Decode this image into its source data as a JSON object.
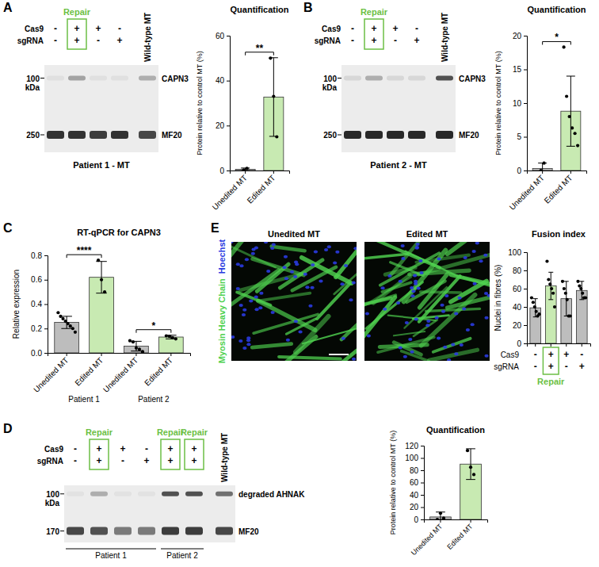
{
  "panel_labels": [
    "A",
    "B",
    "C",
    "D",
    "E"
  ],
  "blots": [
    {
      "rows": [
        {
          "label": "Cas9",
          "values": [
            "-",
            "+",
            "+",
            "-"
          ]
        },
        {
          "label": "sgRNA",
          "values": [
            "-",
            "+",
            "-",
            "+"
          ]
        }
      ],
      "extra_lane": "Wild-type MT",
      "repair_lanes": [
        1
      ],
      "repair_label": "Repair",
      "markers": [
        100,
        250
      ],
      "marker_unit": "kDa",
      "bands": [
        "CAPN3",
        "MF20"
      ],
      "caption": "Patient 1 - MT"
    },
    {
      "rows": [
        {
          "label": "Cas9",
          "values": [
            "-",
            "+",
            "+",
            "-"
          ]
        },
        {
          "label": "sgRNA",
          "values": [
            "-",
            "+",
            "-",
            "+"
          ]
        }
      ],
      "extra_lane": "Wild-type MT",
      "repair_lanes": [
        1
      ],
      "repair_label": "Repair",
      "markers": [
        100,
        250
      ],
      "marker_unit": "kDa",
      "bands": [
        "CAPN3",
        "MF20"
      ],
      "caption": "Patient 2 - MT"
    },
    {
      "rows": [
        {
          "label": "Cas9",
          "values": [
            "-",
            "+",
            "+",
            "-",
            "+",
            "+"
          ]
        },
        {
          "label": "sgRNA",
          "values": [
            "-",
            "+",
            "-",
            "+",
            "+",
            "+"
          ]
        }
      ],
      "extra_lane": "Wild-type MT",
      "repair_lanes": [
        1,
        4,
        5
      ],
      "repair_label": "Repair",
      "markers": [
        100,
        170
      ],
      "marker_unit": "kDa",
      "bands": [
        "degraded AHNAK",
        "MF20"
      ],
      "groups": [
        {
          "label": "Patient 1",
          "lanes": [
            0,
            3
          ]
        },
        {
          "label": "Patient 2",
          "lanes": [
            4,
            5
          ]
        }
      ]
    }
  ],
  "images": {
    "titles": [
      "Unedited MT",
      "Edited MT"
    ],
    "stains": [
      {
        "text": "Myosin Heavy Chain",
        "color": "#4fd14f"
      },
      {
        "text": "Hoechst",
        "color": "#2a3be0"
      }
    ]
  },
  "chart_data": [
    {
      "type": "bar",
      "title": "Quantification",
      "ylabel": "Protein relative to control MT (%)",
      "categories": [
        "Unedited MT",
        "Edited MT"
      ],
      "values": [
        0.5,
        32.7
      ],
      "errors": [
        0.6,
        17.5
      ],
      "points": [
        [
          0.2,
          0.9
        ],
        [
          50,
          33,
          15
        ]
      ],
      "colors": [
        "#bdbdbd",
        "#c8eab2"
      ],
      "ylim": [
        0,
        60
      ],
      "yticks": [
        0,
        20,
        40,
        60
      ],
      "annotations": [
        {
          "text": "**",
          "between": [
            0,
            1
          ]
        }
      ]
    },
    {
      "type": "bar",
      "title": "Quantification",
      "ylabel": "Protein relative to control MT (%)",
      "categories": [
        "Unedited MT",
        "Edited MT"
      ],
      "values": [
        0.3,
        8.8
      ],
      "errors": [
        0.8,
        5.2
      ],
      "points": [
        [
          0,
          1.1
        ],
        [
          18.3,
          11,
          8,
          6.3,
          5.5,
          3.7
        ]
      ],
      "colors": [
        "#bdbdbd",
        "#c8eab2"
      ],
      "ylim": [
        0,
        20
      ],
      "yticks": [
        0,
        5,
        10,
        15,
        20
      ],
      "annotations": [
        {
          "text": "*",
          "between": [
            0,
            1
          ]
        }
      ]
    },
    {
      "type": "bar",
      "title": "RT-qPCR for CAPN3",
      "ylabel": "Relative expression",
      "categories": [
        "Unedited MT",
        "Edited MT",
        "Unedited MT",
        "Edited MT"
      ],
      "group_labels": [
        "Patient 1",
        "Patient 2"
      ],
      "values": [
        0.25,
        0.62,
        0.055,
        0.13
      ],
      "errors": [
        0.05,
        0.13,
        0.04,
        0.015
      ],
      "points": [
        [
          0.33,
          0.3,
          0.28,
          0.26,
          0.24,
          0.22,
          0.2,
          0.17
        ],
        [
          0.76,
          0.6,
          0.5
        ],
        [
          0.1,
          0.09,
          0.04,
          0.03,
          0.01
        ],
        [
          0.14,
          0.135,
          0.125,
          0.115
        ]
      ],
      "colors": [
        "#bdbdbd",
        "#c8eab2",
        "#bdbdbd",
        "#c8eab2"
      ],
      "ylim": [
        0,
        0.8
      ],
      "yticks": [
        {
          "value": 0,
          "label": "0.0"
        },
        0.2,
        0.4,
        0.6,
        0.8
      ],
      "annotations": [
        {
          "text": "****",
          "between": [
            0,
            1
          ]
        },
        {
          "text": "*",
          "between": [
            2,
            3
          ]
        }
      ]
    },
    {
      "type": "bar",
      "title": "Quantification",
      "ylabel": "Protein relative to control MT (%)",
      "categories": [
        "Unedited MT",
        "Edited MT"
      ],
      "values": [
        4,
        90
      ],
      "errors": [
        8,
        25
      ],
      "points": [
        [
          0,
          10,
          2
        ],
        [
          112,
          85,
          73
        ]
      ],
      "colors": [
        "#bdbdbd",
        "#c8eab2"
      ],
      "ylim": [
        0,
        120
      ],
      "yticks": [
        0,
        20,
        40,
        60,
        80,
        100,
        120
      ]
    },
    {
      "type": "bar",
      "title": "Fusion index",
      "ylabel": "Nuclei in fibres (%)",
      "categories": [
        null,
        null,
        null,
        null
      ],
      "values": [
        39,
        63,
        49,
        58
      ],
      "errors": [
        10,
        15,
        19,
        10
      ],
      "points": [
        [
          50,
          45,
          40,
          35,
          30,
          32
        ],
        [
          90,
          70,
          65,
          60,
          55,
          40
        ],
        [
          68,
          60,
          55,
          48,
          30,
          30
        ],
        [
          68,
          63,
          60,
          55,
          50,
          50
        ]
      ],
      "colors": [
        "#bdbdbd",
        "#c8eab2",
        "#bdbdbd",
        "#bdbdbd"
      ],
      "ylim": [
        0,
        100
      ],
      "yticks": [
        0,
        20,
        40,
        60,
        80,
        100
      ],
      "conditions": {
        "rows": [
          {
            "label": "Cas9",
            "values": [
              "-",
              "+",
              "+",
              "-"
            ]
          },
          {
            "label": "sgRNA",
            "values": [
              "-",
              "+",
              "-",
              "+"
            ]
          }
        ],
        "highlight": [
          1
        ],
        "highlight_label": "Repair"
      }
    }
  ]
}
